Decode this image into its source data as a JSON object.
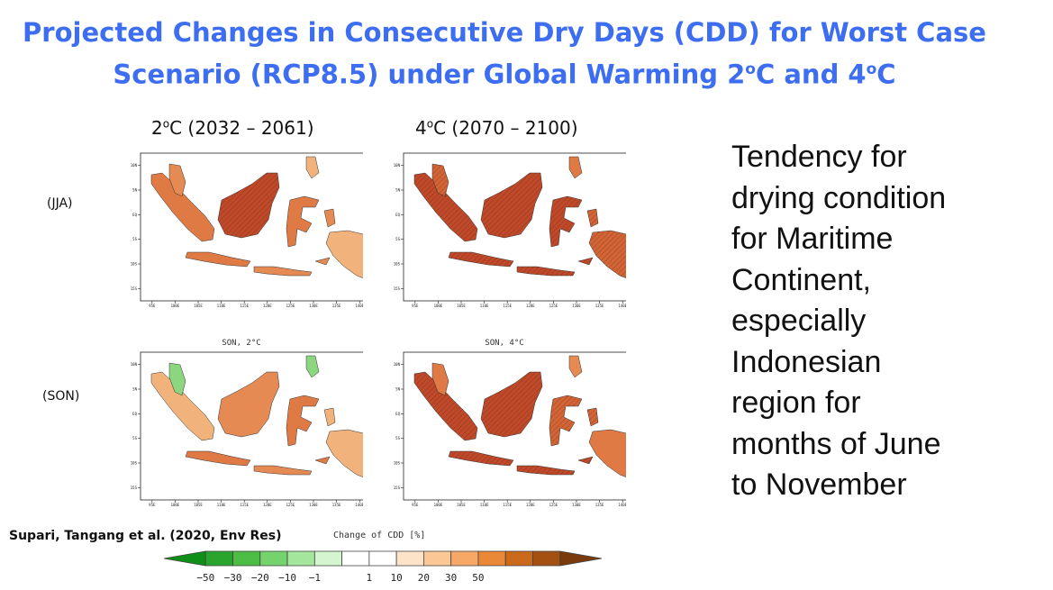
{
  "slide": {
    "title_line1": "Projected Changes in Consecutive Dry Days (CDD) for Worst Case",
    "title_line2_pre": "Scenario (RCP8.5) under Global Warming 2",
    "title_sup1": "o",
    "title_mid": "C and 4",
    "title_sup2": "o",
    "title_end": "C"
  },
  "columns": [
    {
      "pre": "2",
      "sup": "o",
      "post": "C (2032 – 2061)"
    },
    {
      "pre": "4",
      "sup": "o",
      "post": "C (2070 – 2100)"
    }
  ],
  "rows": [
    {
      "label": "(JJA)"
    },
    {
      "label": "(SON)"
    }
  ],
  "panel_subtitles": [
    "SON, 2°C",
    "SON, 4°C"
  ],
  "map_axes": {
    "lon_ticks": [
      "95E",
      "100E",
      "105E",
      "110E",
      "115E",
      "120E",
      "125E",
      "130E",
      "135E",
      "140E"
    ],
    "lat_ticks": [
      "10N",
      "5N",
      "EQ",
      "5S",
      "10S",
      "15S"
    ]
  },
  "side_text": [
    "Tendency for",
    "drying condition",
    "for Maritime",
    "Continent,",
    "especially",
    "Indonesian",
    "region for",
    "months of June",
    "to November"
  ],
  "citation": "Supari, Tangang et al. (2020, Env Res)",
  "colorbar": {
    "title": "Change of CDD [%]",
    "labels": [
      "−50",
      "−30",
      "−20",
      "−10",
      "−1",
      "1",
      "10",
      "20",
      "30",
      "50"
    ],
    "colors": [
      "#0e8f18",
      "#29a52d",
      "#4cbd45",
      "#74d36a",
      "#a4e69b",
      "#d4f5cf",
      "#ffffff",
      "#ffffff",
      "#fde3c8",
      "#fbc795",
      "#f7a866",
      "#ea8838",
      "#cc6a1b",
      "#a35010",
      "#7a3a0c"
    ]
  },
  "colors": {
    "title": "#3d6ef2",
    "land_dry_strong": "#c0492a",
    "land_dry_mid": "#df7a45",
    "land_dry_light": "#f2b27c",
    "land_wet": "#8bd67f"
  }
}
